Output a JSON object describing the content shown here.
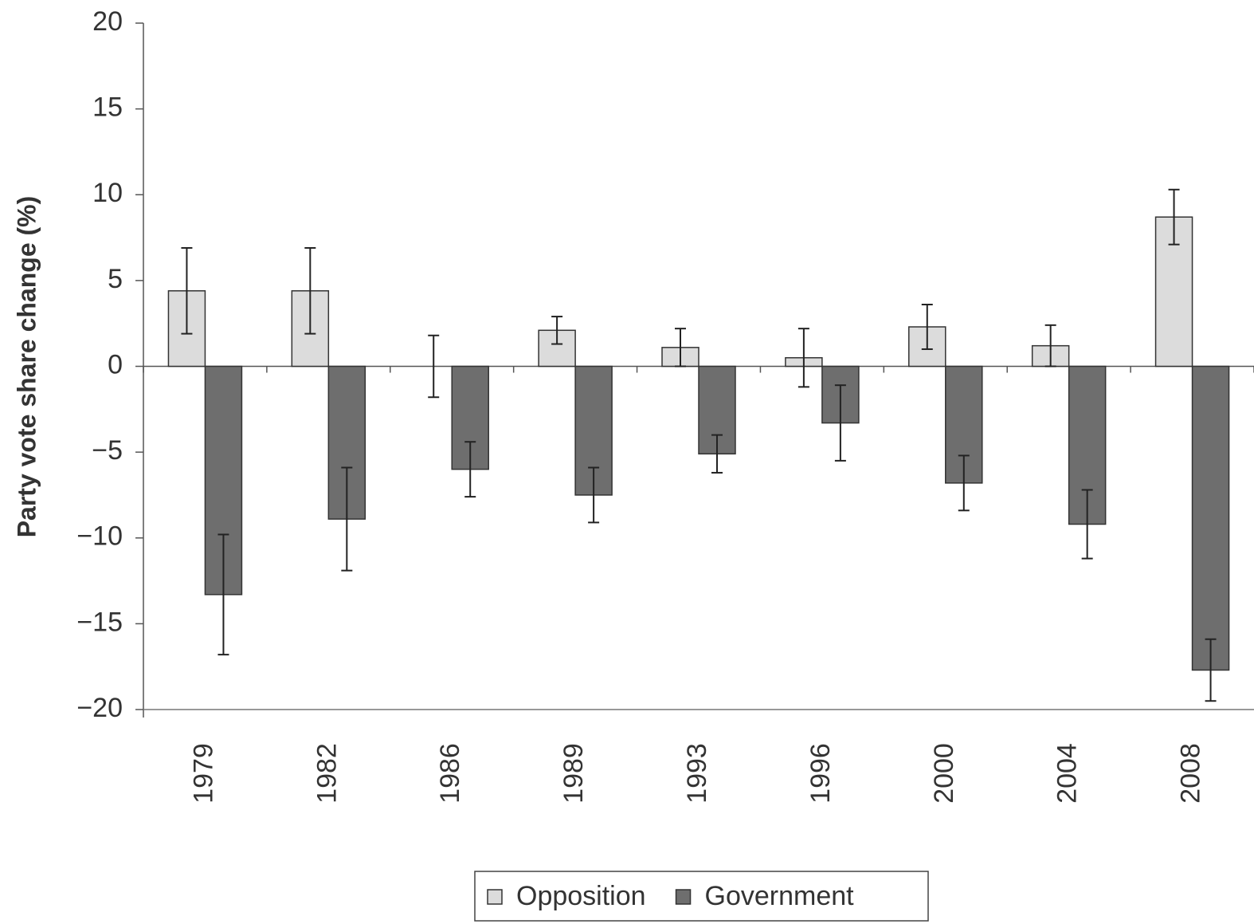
{
  "chart_data": {
    "type": "bar",
    "y_label": "Party vote share change (%)",
    "categories": [
      "1979",
      "1982",
      "1986",
      "1989",
      "1993",
      "1996",
      "2000",
      "2004",
      "2008"
    ],
    "series": [
      {
        "name": "Opposition",
        "color": "#dcdcdc",
        "values": [
          4.4,
          4.4,
          0,
          2.1,
          1.1,
          0.5,
          2.3,
          1.2,
          8.7
        ],
        "errors": [
          2.5,
          2.5,
          1.8,
          0.8,
          1.1,
          1.7,
          1.3,
          1.2,
          1.6
        ]
      },
      {
        "name": "Government",
        "color": "#6e6e6e",
        "values": [
          -13.3,
          -8.9,
          -6.0,
          -7.5,
          -5.1,
          -3.3,
          -6.8,
          -9.2,
          -17.7
        ],
        "errors": [
          3.5,
          3.0,
          1.6,
          1.6,
          1.1,
          2.2,
          1.6,
          2.0,
          1.8
        ]
      }
    ],
    "ylim": [
      -20,
      20
    ],
    "yticks": [
      {
        "value": -20,
        "label": "−20"
      },
      {
        "value": -15,
        "label": "−15"
      },
      {
        "value": -10,
        "label": "−10"
      },
      {
        "value": -5,
        "label": "−5"
      },
      0,
      5,
      10,
      15,
      20
    ],
    "legend": "bottom"
  }
}
